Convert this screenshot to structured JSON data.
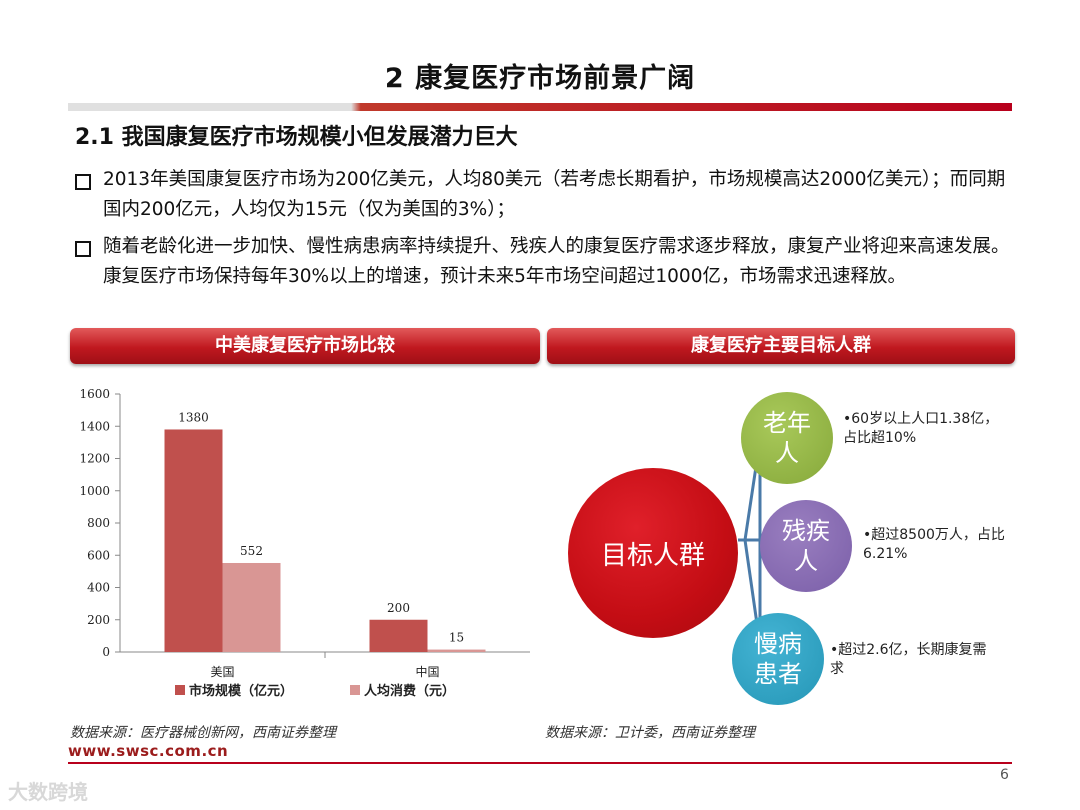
{
  "header": {
    "title": "2  康复医疗市场前景广阔",
    "subtitle": "2.1 我国康复医疗市场规模小但发展潜力巨大"
  },
  "bullets": [
    "2013年美国康复医疗市场为200亿美元，人均80美元（若考虑长期看护，市场规模高达2000亿美元）；而同期国内200亿元，人均仅为15元（仅为美国的3%）；",
    "随着老龄化进一步加快、慢性病患病率持续提升、残疾人的康复医疗需求逐步释放，康复产业将迎来高速发展。康复医疗市场保持每年30%以上的增速，预计未来5年市场空间超过1000亿，市场需求迅速释放。"
  ],
  "panels": {
    "left_title": "中美康复医疗市场比较",
    "right_title": "康复医疗主要目标人群"
  },
  "chart_data": {
    "type": "bar",
    "categories": [
      "美国",
      "中国"
    ],
    "series": [
      {
        "name": "市场规模（亿元）",
        "values": [
          1380,
          200
        ],
        "color": "#c0504d"
      },
      {
        "name": "人均消费（元）",
        "values": [
          552,
          15
        ],
        "color": "#d99694"
      }
    ],
    "ylim": [
      0,
      1600
    ],
    "yticks": [
      0,
      200,
      400,
      600,
      800,
      1000,
      1200,
      1400,
      1600
    ],
    "legend": "bottom"
  },
  "diagram": {
    "center": "目标人群",
    "groups": [
      {
        "label": "老年人",
        "desc": "•60岁以上人口1.38亿，占比超10%"
      },
      {
        "label": "残疾人",
        "desc": "•超过8500万人，占比6.21%"
      },
      {
        "label": "慢病患者",
        "desc": "•超过2.6亿，长期康复需求"
      }
    ]
  },
  "footer": {
    "source_left": "数据来源：医疗器械创新网，西南证券整理",
    "source_right": "数据来源：卫计委，西南证券整理",
    "website": "www.swsc.com.cn",
    "page_number": "6",
    "watermark": "大数跨境"
  },
  "colors": {
    "accent": "#b8001c",
    "elder": "#95b64a",
    "disabled": "#8a6db5",
    "chronic": "#33a6c6"
  }
}
